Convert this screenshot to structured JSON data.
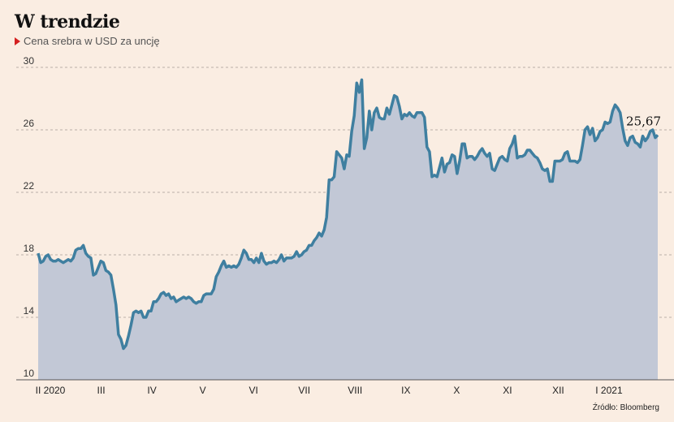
{
  "title": "W trendzie",
  "subtitle": "Cena srebra w USD za uncję",
  "source": "Źródło: Bloomberg",
  "colors": {
    "background": "#faede2",
    "line": "#3f7fa0",
    "area": "#c2c8d6",
    "marker": "#d42020",
    "grid": "#b9b0a8"
  },
  "chart_data": {
    "type": "area",
    "title": "W trendzie",
    "subtitle": "Cena srebra w USD za uncję",
    "ylim": [
      10,
      30
    ],
    "yticks": [
      10,
      14,
      18,
      22,
      26,
      30
    ],
    "grid": "horizontal-dashed",
    "x_tick_labels": [
      "II 2020",
      "III",
      "IV",
      "V",
      "VI",
      "VII",
      "VIII",
      "IX",
      "X",
      "XI",
      "XII",
      "I 2021"
    ],
    "last_value_label": "25,67",
    "series": [
      {
        "values": [
          18.1,
          17.5,
          17.6,
          17.9,
          18.0,
          17.7,
          17.6,
          17.6,
          17.7,
          17.6,
          17.5,
          17.6,
          17.7,
          17.6,
          17.8,
          18.3,
          18.4,
          18.4,
          18.6,
          18.1,
          17.9,
          17.8,
          16.7,
          16.8,
          17.2,
          17.6,
          17.5,
          17.0,
          16.9,
          16.7,
          15.8,
          14.8,
          12.9,
          12.6,
          12.0,
          12.2,
          12.8,
          13.5,
          14.3,
          14.4,
          14.3,
          14.4,
          14.0,
          14.0,
          14.4,
          14.4,
          15.0,
          15.0,
          15.2,
          15.5,
          15.6,
          15.4,
          15.5,
          15.2,
          15.3,
          15.0,
          15.1,
          15.2,
          15.3,
          15.2,
          15.3,
          15.2,
          15.0,
          14.9,
          15.0,
          15.0,
          15.4,
          15.5,
          15.5,
          15.5,
          15.8,
          16.6,
          16.9,
          17.3,
          17.6,
          17.2,
          17.3,
          17.2,
          17.3,
          17.2,
          17.4,
          17.8,
          18.3,
          18.1,
          17.7,
          17.7,
          17.5,
          17.8,
          17.5,
          18.1,
          17.6,
          17.4,
          17.5,
          17.5,
          17.6,
          17.5,
          17.7,
          18.0,
          17.6,
          17.8,
          17.8,
          17.8,
          17.9,
          18.2,
          17.9,
          18.0,
          18.2,
          18.3,
          18.6,
          18.6,
          18.9,
          19.1,
          19.4,
          19.2,
          19.6,
          20.4,
          22.8,
          22.8,
          23.0,
          24.6,
          24.4,
          24.2,
          23.5,
          24.4,
          24.3,
          25.9,
          26.9,
          29.0,
          28.4,
          29.2,
          24.8,
          25.5,
          27.2,
          26.0,
          27.1,
          27.4,
          26.8,
          26.7,
          26.7,
          27.4,
          27.0,
          27.6,
          28.2,
          28.1,
          27.5,
          26.7,
          27.0,
          26.9,
          27.1,
          26.9,
          26.8,
          27.1,
          27.1,
          27.1,
          26.8,
          24.9,
          24.6,
          23.0,
          23.1,
          23.0,
          23.6,
          24.2,
          23.3,
          23.8,
          23.9,
          24.4,
          24.3,
          23.2,
          24.0,
          25.1,
          25.1,
          24.2,
          24.3,
          24.3,
          24.1,
          24.3,
          24.6,
          24.8,
          24.5,
          24.3,
          24.5,
          23.5,
          23.4,
          23.8,
          24.2,
          24.3,
          24.1,
          24.0,
          24.8,
          25.1,
          25.6,
          24.2,
          24.3,
          24.3,
          24.4,
          24.7,
          24.7,
          24.5,
          24.3,
          24.2,
          23.9,
          23.5,
          23.4,
          23.5,
          22.7,
          22.7,
          24.0,
          24.0,
          24.0,
          24.1,
          24.5,
          24.6,
          24.0,
          24.0,
          24.0,
          23.9,
          24.1,
          25.0,
          26.0,
          26.2,
          25.7,
          26.1,
          25.3,
          25.5,
          25.9,
          26.0,
          26.5,
          26.4,
          26.5,
          27.2,
          27.6,
          27.4,
          27.1,
          26.1,
          25.3,
          25.0,
          25.5,
          25.6,
          25.2,
          25.1,
          24.9,
          25.6,
          25.3,
          25.5,
          25.9,
          26.0,
          25.5,
          25.67
        ]
      }
    ]
  }
}
